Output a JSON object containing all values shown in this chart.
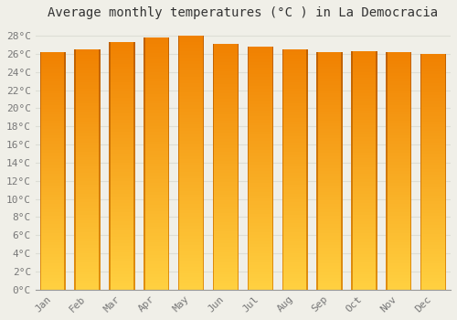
{
  "title": "Average monthly temperatures (°C ) in La Democracia",
  "months": [
    "Jan",
    "Feb",
    "Mar",
    "Apr",
    "May",
    "Jun",
    "Jul",
    "Aug",
    "Sep",
    "Oct",
    "Nov",
    "Dec"
  ],
  "values": [
    26.2,
    26.5,
    27.3,
    27.8,
    28.0,
    27.1,
    26.8,
    26.5,
    26.2,
    26.3,
    26.2,
    26.0
  ],
  "bar_color_bottom": "#FFD040",
  "bar_color_mid": "#FFA800",
  "bar_color_top": "#F08000",
  "bar_color_edge": "#E07800",
  "ylim": [
    0,
    29
  ],
  "ytick_step": 2,
  "background_color": "#F0EFE8",
  "grid_color": "#DDDDD5",
  "title_fontsize": 10,
  "tick_fontsize": 8,
  "font_family": "monospace"
}
